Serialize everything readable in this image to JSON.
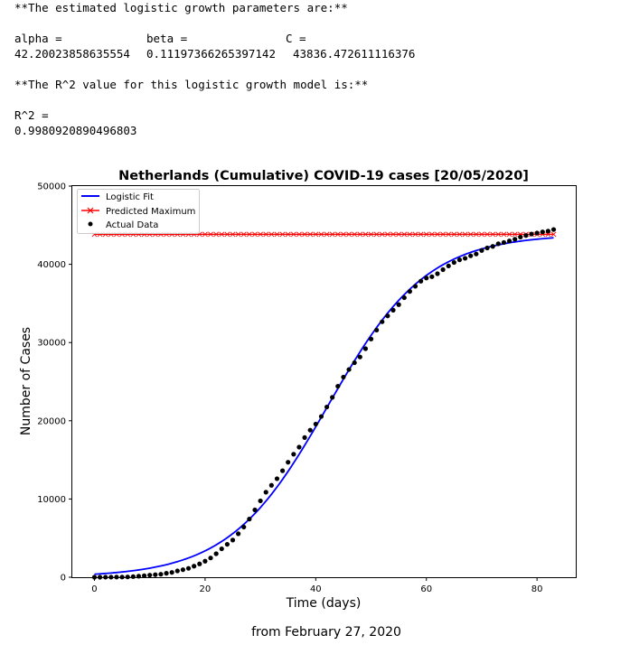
{
  "output": {
    "params_heading": "**The estimated logistic growth parameters are:**",
    "param_labels": [
      "alpha =",
      "beta =",
      "C ="
    ],
    "param_values": [
      "42.20023858635554",
      "0.11197366265397142",
      "43836.472611116376"
    ],
    "r2_heading": "**The R^2 value for this logistic growth model is:**",
    "r2_label": "R^2 =",
    "r2_value": "0.9980920890496803"
  },
  "chart_data": {
    "type": "line",
    "title": "Netherlands (Cumulative) COVID-19 cases [20/05/2020]",
    "xlabel": "Time (days)",
    "ylabel": "Number of Cases",
    "caption": "from February 27, 2020",
    "xlim": [
      -4,
      87
    ],
    "ylim": [
      0,
      50000
    ],
    "xticks": [
      0,
      20,
      40,
      60,
      80
    ],
    "yticks": [
      0,
      10000,
      20000,
      30000,
      40000,
      50000
    ],
    "legend_position": "top-left",
    "grid": false,
    "logistic": {
      "alpha": 42.20023858635554,
      "beta": 0.11197366265397142,
      "C": 43836.472611116376
    },
    "series": [
      {
        "name": "Logistic Fit",
        "kind": "line",
        "color": "#0000ff",
        "x_start": 0,
        "x_end": 83
      },
      {
        "name": "Predicted Maximum",
        "kind": "line-x-markers",
        "color": "#ff0000",
        "value": 43836.472611116376,
        "x_start": 0,
        "x_end": 83
      },
      {
        "name": "Actual Data",
        "kind": "scatter",
        "color": "#000000",
        "x_start": 0,
        "values": [
          1,
          2,
          7,
          10,
          18,
          24,
          38,
          82,
          128,
          188,
          265,
          321,
          382,
          503,
          614,
          804,
          959,
          1135,
          1413,
          1705,
          2051,
          2460,
          3003,
          3631,
          4204,
          4749,
          5560,
          6412,
          7431,
          8603,
          9762,
          10866,
          11750,
          12595,
          13614,
          14697,
          15723,
          16627,
          17851,
          18803,
          19580,
          20549,
          21762,
          22995,
          24413,
          25587,
          26551,
          27419,
          28153,
          29214,
          30449,
          31589,
          32655,
          33405,
          34134,
          34842,
          35729,
          36535,
          37190,
          37845,
          38245,
          38416,
          38802,
          39316,
          39791,
          40236,
          40571,
          40770,
          41087,
          41319,
          41774,
          42093,
          42292,
          42627,
          42788,
          42984,
          43211,
          43481,
          43681,
          43870,
          43995,
          44141,
          44249,
          44447
        ]
      }
    ]
  }
}
